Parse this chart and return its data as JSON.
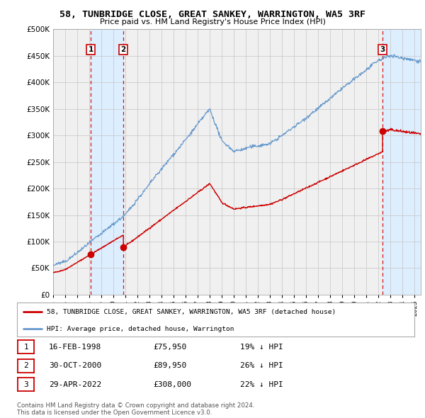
{
  "title": "58, TUNBRIDGE CLOSE, GREAT SANKEY, WARRINGTON, WA5 3RF",
  "subtitle": "Price paid vs. HM Land Registry's House Price Index (HPI)",
  "ytick_values": [
    0,
    50000,
    100000,
    150000,
    200000,
    250000,
    300000,
    350000,
    400000,
    450000,
    500000
  ],
  "xlim_start": 1995.0,
  "xlim_end": 2025.5,
  "ylim_min": 0,
  "ylim_max": 500000,
  "purchases": [
    {
      "label": "1",
      "date": 1998.12,
      "price": 75950,
      "desc": "16-FEB-1998",
      "hpi_pct": "19% ↓ HPI"
    },
    {
      "label": "2",
      "date": 2000.83,
      "price": 89950,
      "desc": "30-OCT-2000",
      "hpi_pct": "26% ↓ HPI"
    },
    {
      "label": "3",
      "date": 2022.33,
      "price": 308000,
      "desc": "29-APR-2022",
      "hpi_pct": "22% ↓ HPI"
    }
  ],
  "hpi_color": "#6699cc",
  "price_color": "#cc0000",
  "vline_color": "#cc0000",
  "grid_color": "#cccccc",
  "background_color": "#f0f0f0",
  "shade_color": "#ddeeff",
  "legend_label_price": "58, TUNBRIDGE CLOSE, GREAT SANKEY, WARRINGTON, WA5 3RF (detached house)",
  "legend_label_hpi": "HPI: Average price, detached house, Warrington",
  "footer1": "Contains HM Land Registry data © Crown copyright and database right 2024.",
  "footer2": "This data is licensed under the Open Government Licence v3.0.",
  "xtick_years": [
    1995,
    1996,
    1997,
    1998,
    1999,
    2000,
    2001,
    2002,
    2003,
    2004,
    2005,
    2006,
    2007,
    2008,
    2009,
    2010,
    2011,
    2012,
    2013,
    2014,
    2015,
    2016,
    2017,
    2018,
    2019,
    2020,
    2021,
    2022,
    2023,
    2024,
    2025
  ]
}
